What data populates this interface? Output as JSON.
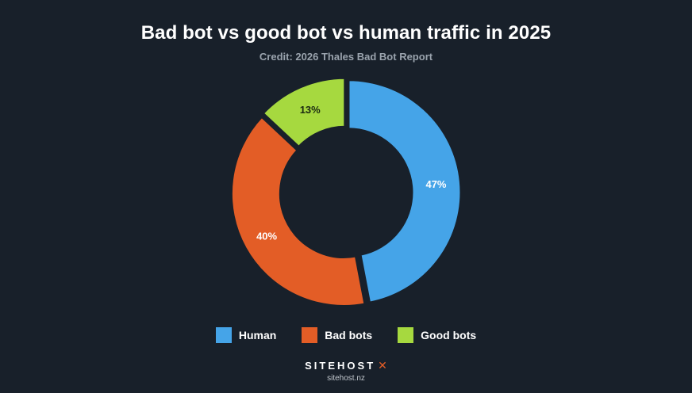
{
  "header": {
    "title": "Bad bot vs good bot vs human traffic in 2025",
    "subtitle": "Credit: 2026 Thales Bad Bot Report"
  },
  "chart_data": {
    "type": "pie",
    "style": "donut",
    "title": "Bad bot vs good bot vs human traffic in 2025",
    "subtitle": "Credit: 2026 Thales Bad Bot Report",
    "legend_position": "bottom",
    "slices": [
      {
        "name": "Human",
        "value": 47,
        "label": "47%",
        "color": "#45a4e8"
      },
      {
        "name": "Bad bots",
        "value": 40,
        "label": "40%",
        "color": "#e35d26"
      },
      {
        "name": "Good bots",
        "value": 13,
        "label": "13%",
        "color": "#a6d93f"
      }
    ]
  },
  "legend": [
    {
      "label": "Human",
      "color": "#45a4e8"
    },
    {
      "label": "Bad bots",
      "color": "#e35d26"
    },
    {
      "label": "Good bots",
      "color": "#a6d93f"
    }
  ],
  "footer": {
    "brand": "SITEHOST",
    "brand_mark": "✕",
    "url": "sitehost.nz"
  }
}
